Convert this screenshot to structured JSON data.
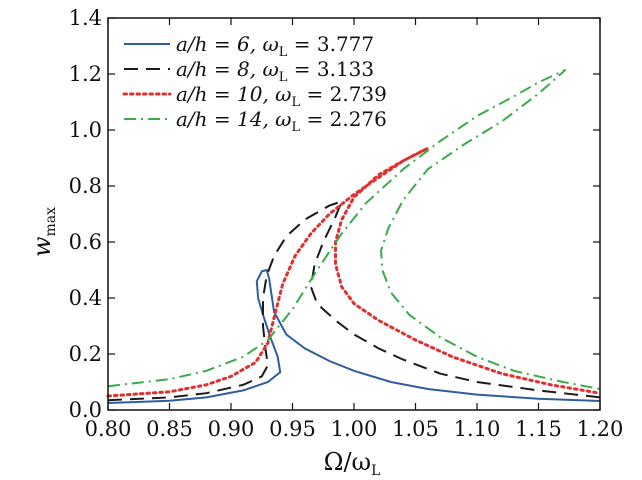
{
  "chart_data": {
    "type": "line",
    "title": "",
    "xlabel": "Ω/ω",
    "xlabel_sub": "L",
    "ylabel": "w",
    "ylabel_sub": "max",
    "xlim": [
      0.8,
      1.2
    ],
    "ylim": [
      0.0,
      1.4
    ],
    "x_ticks": [
      "0.80",
      "0.85",
      "0.90",
      "0.95",
      "1.00",
      "1.05",
      "1.10",
      "1.15",
      "1.20"
    ],
    "y_ticks": [
      "0.0",
      "0.2",
      "0.4",
      "0.6",
      "0.8",
      "1.0",
      "1.2",
      "1.4"
    ],
    "grid": false,
    "legend_position": "top-left",
    "series": [
      {
        "name": "a/h = 6, ω_L = 3.777",
        "legend_parts": [
          "a/h = 6, ω",
          "L",
          " = 3.777"
        ],
        "color": "#2f5ea0",
        "dash": "solid",
        "points": [
          [
            0.8,
            0.025
          ],
          [
            0.85,
            0.033
          ],
          [
            0.88,
            0.045
          ],
          [
            0.91,
            0.07
          ],
          [
            0.93,
            0.1
          ],
          [
            0.94,
            0.135
          ],
          [
            0.938,
            0.19
          ],
          [
            0.932,
            0.26
          ],
          [
            0.926,
            0.34
          ],
          [
            0.922,
            0.4
          ],
          [
            0.921,
            0.46
          ],
          [
            0.925,
            0.495
          ],
          [
            0.929,
            0.5
          ],
          [
            0.931,
            0.47
          ],
          [
            0.935,
            0.35
          ],
          [
            0.945,
            0.27
          ],
          [
            0.96,
            0.22
          ],
          [
            0.98,
            0.175
          ],
          [
            1.0,
            0.14
          ],
          [
            1.03,
            0.1
          ],
          [
            1.06,
            0.075
          ],
          [
            1.1,
            0.055
          ],
          [
            1.15,
            0.04
          ],
          [
            1.2,
            0.032
          ]
        ]
      },
      {
        "name": "a/h = 8, ω_L = 3.133",
        "legend_parts": [
          "a/h = 8, ω",
          "L",
          " = 3.133"
        ],
        "color": "#1a1a1a",
        "dash": "long-dash",
        "points": [
          [
            0.8,
            0.035
          ],
          [
            0.85,
            0.045
          ],
          [
            0.88,
            0.06
          ],
          [
            0.91,
            0.09
          ],
          [
            0.925,
            0.12
          ],
          [
            0.93,
            0.16
          ],
          [
            0.928,
            0.22
          ],
          [
            0.926,
            0.3
          ],
          [
            0.926,
            0.4
          ],
          [
            0.929,
            0.48
          ],
          [
            0.935,
            0.55
          ],
          [
            0.945,
            0.62
          ],
          [
            0.96,
            0.68
          ],
          [
            0.98,
            0.73
          ],
          [
            0.99,
            0.745
          ],
          [
            0.985,
            0.69
          ],
          [
            0.975,
            0.6
          ],
          [
            0.968,
            0.52
          ],
          [
            0.965,
            0.44
          ],
          [
            0.97,
            0.38
          ],
          [
            0.985,
            0.32
          ],
          [
            1.0,
            0.27
          ],
          [
            1.02,
            0.22
          ],
          [
            1.04,
            0.18
          ],
          [
            1.07,
            0.13
          ],
          [
            1.1,
            0.1
          ],
          [
            1.15,
            0.07
          ],
          [
            1.2,
            0.045
          ]
        ]
      },
      {
        "name": "a/h = 10, ω_L = 2.739",
        "legend_parts": [
          "a/h = 10, ω",
          "L",
          " = 2.739"
        ],
        "color": "#e03030",
        "dash": "dotted",
        "points": [
          [
            0.8,
            0.05
          ],
          [
            0.85,
            0.065
          ],
          [
            0.88,
            0.09
          ],
          [
            0.9,
            0.12
          ],
          [
            0.92,
            0.17
          ],
          [
            0.93,
            0.24
          ],
          [
            0.935,
            0.33
          ],
          [
            0.942,
            0.45
          ],
          [
            0.952,
            0.55
          ],
          [
            0.965,
            0.63
          ],
          [
            0.98,
            0.7
          ],
          [
            1.0,
            0.77
          ],
          [
            1.02,
            0.83
          ],
          [
            1.04,
            0.89
          ],
          [
            1.06,
            0.935
          ],
          [
            1.04,
            0.89
          ],
          [
            1.02,
            0.84
          ],
          [
            1.0,
            0.76
          ],
          [
            0.99,
            0.68
          ],
          [
            0.985,
            0.6
          ],
          [
            0.985,
            0.52
          ],
          [
            0.99,
            0.44
          ],
          [
            1.0,
            0.38
          ],
          [
            1.02,
            0.32
          ],
          [
            1.05,
            0.25
          ],
          [
            1.08,
            0.19
          ],
          [
            1.12,
            0.13
          ],
          [
            1.16,
            0.09
          ],
          [
            1.2,
            0.06
          ]
        ]
      },
      {
        "name": "a/h = 14, ω_L = 2.276",
        "legend_parts": [
          "a/h = 14, ω",
          "L",
          " = 2.276"
        ],
        "color": "#3aaa4a",
        "dash": "dash-dot",
        "points": [
          [
            0.8,
            0.085
          ],
          [
            0.85,
            0.11
          ],
          [
            0.88,
            0.14
          ],
          [
            0.91,
            0.19
          ],
          [
            0.93,
            0.25
          ],
          [
            0.95,
            0.36
          ],
          [
            0.97,
            0.5
          ],
          [
            0.99,
            0.63
          ],
          [
            1.01,
            0.74
          ],
          [
            1.04,
            0.86
          ],
          [
            1.07,
            0.96
          ],
          [
            1.1,
            1.05
          ],
          [
            1.13,
            1.12
          ],
          [
            1.15,
            1.17
          ],
          [
            1.172,
            1.215
          ],
          [
            1.15,
            1.13
          ],
          [
            1.12,
            1.03
          ],
          [
            1.09,
            0.95
          ],
          [
            1.06,
            0.86
          ],
          [
            1.04,
            0.75
          ],
          [
            1.028,
            0.65
          ],
          [
            1.022,
            0.57
          ],
          [
            1.023,
            0.5
          ],
          [
            1.03,
            0.42
          ],
          [
            1.045,
            0.34
          ],
          [
            1.07,
            0.26
          ],
          [
            1.1,
            0.19
          ],
          [
            1.13,
            0.14
          ],
          [
            1.17,
            0.1
          ],
          [
            1.2,
            0.075
          ]
        ]
      }
    ]
  }
}
